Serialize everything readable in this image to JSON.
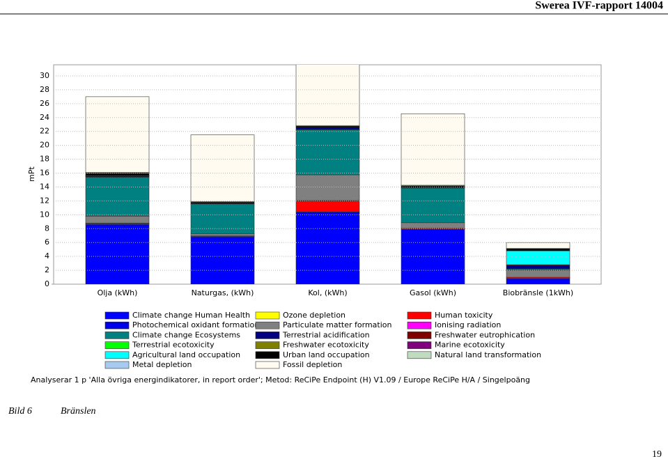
{
  "header": {
    "title": "Swerea IVF-rapport 14004"
  },
  "chart_data": {
    "type": "stacked_bar",
    "ylabel": "mPt",
    "categories": [
      "Olja (kWh)",
      "Naturgas, (kWh)",
      "Kol, (kWh)",
      "Gasol (kWh)",
      "Biobränsle (1kWh)"
    ],
    "ylim": [
      0,
      31.6
    ],
    "yticks": [
      0,
      2,
      4,
      6,
      8,
      10,
      12,
      14,
      16,
      18,
      20,
      22,
      24,
      26,
      28,
      30
    ],
    "grid": true,
    "series": [
      {
        "name": "Climate change Human Health",
        "color": "#0000ff",
        "values": [
          8.6,
          6.8,
          10.4,
          7.9,
          0.8
        ]
      },
      {
        "name": "Ozone depletion",
        "color": "#ffff00",
        "values": [
          0,
          0,
          0,
          0,
          0
        ]
      },
      {
        "name": "Human toxicity",
        "color": "#ff0000",
        "values": [
          0.15,
          0.1,
          1.6,
          0.1,
          0.2
        ]
      },
      {
        "name": "Photochemical oxidant formation",
        "color": "#0000e8",
        "values": [
          0.05,
          0.05,
          0.05,
          0.05,
          0
        ]
      },
      {
        "name": "Particulate matter formation",
        "color": "#808080",
        "values": [
          1.0,
          0.3,
          3.7,
          0.8,
          1.0
        ]
      },
      {
        "name": "Ionising radiation",
        "color": "#ff00ff",
        "values": [
          0.01,
          0,
          0,
          0,
          0
        ]
      },
      {
        "name": "Climate change Ecosystems",
        "color": "#008080",
        "values": [
          5.6,
          4.3,
          6.5,
          5.0,
          0.2
        ]
      },
      {
        "name": "Terrestrial acidification",
        "color": "#000080",
        "values": [
          0.15,
          0.05,
          0.3,
          0.1,
          0.5
        ]
      },
      {
        "name": "Freshwater eutrophication",
        "color": "#800000",
        "values": [
          0.01,
          0,
          0,
          0,
          0.1
        ]
      },
      {
        "name": "Terrestrial ecotoxicity",
        "color": "#00ff00",
        "values": [
          0.01,
          0,
          0,
          0,
          0
        ]
      },
      {
        "name": "Freshwater ecotoxicity",
        "color": "#808000",
        "values": [
          0.01,
          0,
          0,
          0,
          0
        ]
      },
      {
        "name": "Marine ecotoxicity",
        "color": "#800080",
        "values": [
          0.01,
          0,
          0,
          0,
          0
        ]
      },
      {
        "name": "Agricultural land occupation",
        "color": "#00ffff",
        "values": [
          0.05,
          0,
          0,
          0,
          2.0
        ]
      },
      {
        "name": "Urban land occupation",
        "color": "#000000",
        "values": [
          0.3,
          0.2,
          0.2,
          0.2,
          0.3
        ]
      },
      {
        "name": "Natural land transformation",
        "color": "#c0dcc0",
        "values": [
          0.1,
          0.1,
          0.1,
          0.1,
          0.05
        ]
      },
      {
        "name": "Metal depletion",
        "color": "#a6caf0",
        "values": [
          0.05,
          0,
          0,
          0,
          0
        ]
      },
      {
        "name": "Fossil depletion",
        "color": "#fffbf0",
        "values": [
          10.9,
          9.6,
          9.5,
          10.3,
          0.85
        ]
      }
    ],
    "note": "Analyserar 1 p 'Alla övriga energindikatorer, in report order'; Metod: ReCiPe Endpoint (H) V1.09 / Europe ReCiPe H/A / Singelpoäng"
  },
  "caption": {
    "label": "Bild 6",
    "text": "Bränslen"
  },
  "page_number": "19"
}
